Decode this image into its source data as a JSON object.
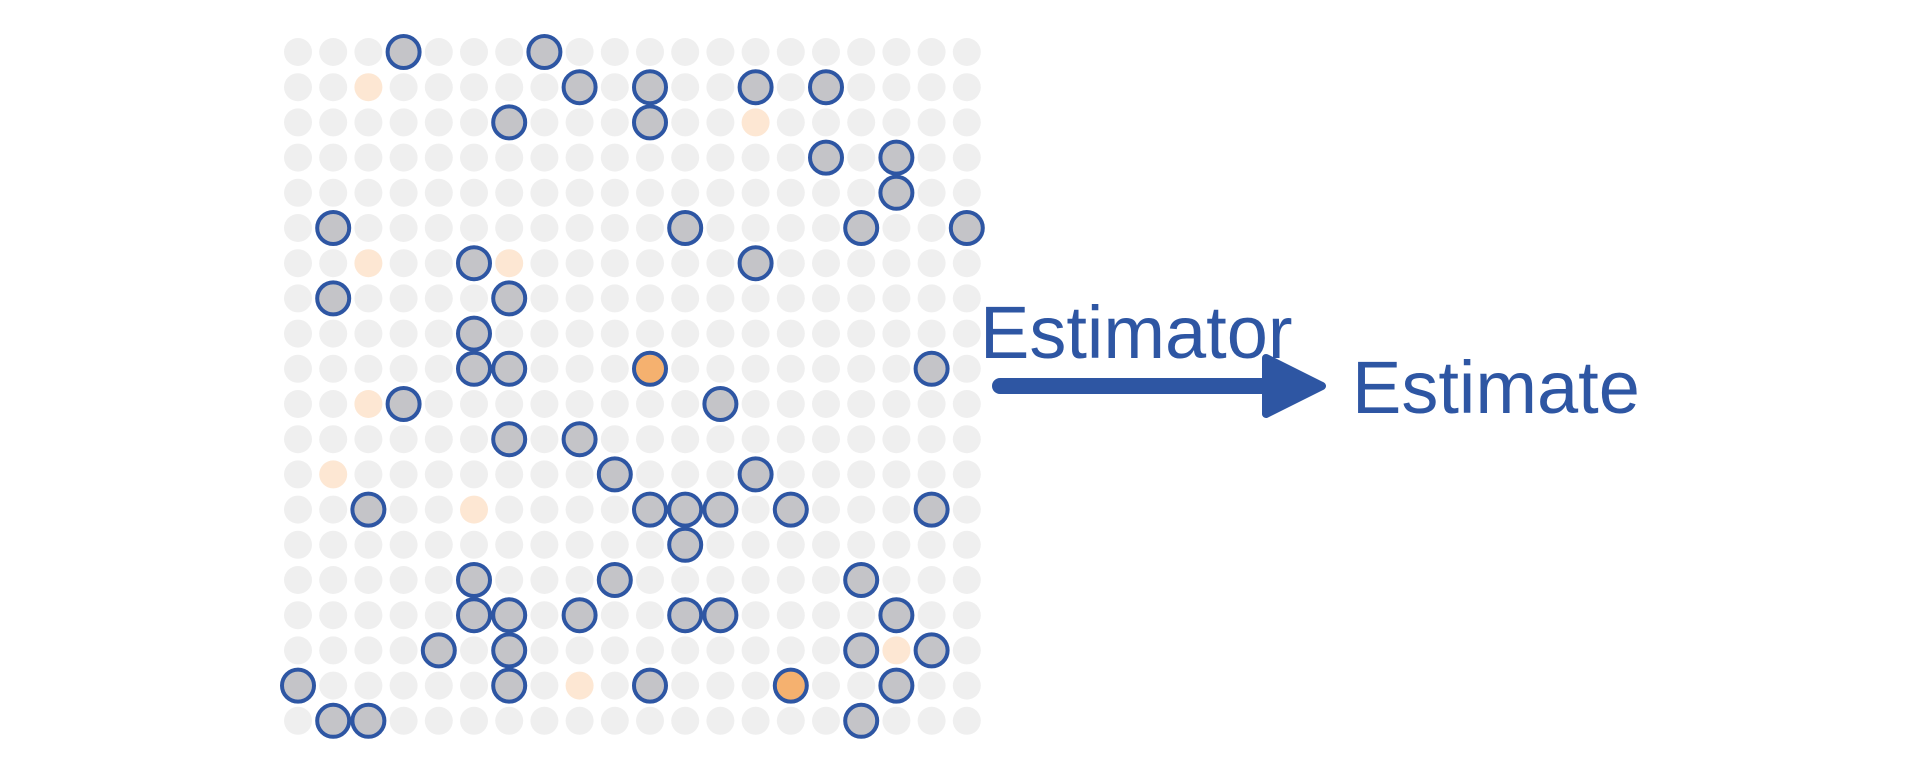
{
  "labels": {
    "estimator": "Estimator",
    "estimate": "Estimate"
  },
  "colors": {
    "background_dot": "#efefef",
    "faint_orange_dot": "#fde7d3",
    "orange_dot": "#f5b16f",
    "sampled_fill": "#c4c4c8",
    "sampled_stroke": "#2e56a3",
    "accent_blue": "#2e56a3"
  },
  "grid": {
    "cols": 20,
    "rows": 20,
    "faint_orange_cells": [
      [
        1,
        2
      ],
      [
        2,
        13
      ],
      [
        6,
        2
      ],
      [
        6,
        6
      ],
      [
        10,
        2
      ],
      [
        12,
        1
      ],
      [
        13,
        5
      ],
      [
        18,
        8
      ],
      [
        17,
        17
      ]
    ],
    "sampled_cells": [
      [
        0,
        3
      ],
      [
        0,
        7
      ],
      [
        1,
        8
      ],
      [
        1,
        10
      ],
      [
        1,
        13
      ],
      [
        1,
        15
      ],
      [
        2,
        6
      ],
      [
        2,
        10
      ],
      [
        3,
        15
      ],
      [
        3,
        17
      ],
      [
        4,
        17
      ],
      [
        5,
        1
      ],
      [
        5,
        11
      ],
      [
        5,
        16
      ],
      [
        5,
        19
      ],
      [
        6,
        5
      ],
      [
        6,
        13
      ],
      [
        7,
        1
      ],
      [
        7,
        6
      ],
      [
        8,
        5
      ],
      [
        9,
        5
      ],
      [
        9,
        6
      ],
      [
        9,
        10
      ],
      [
        9,
        18
      ],
      [
        10,
        3
      ],
      [
        10,
        12
      ],
      [
        11,
        6
      ],
      [
        11,
        8
      ],
      [
        12,
        9
      ],
      [
        12,
        13
      ],
      [
        13,
        2
      ],
      [
        13,
        10
      ],
      [
        13,
        11
      ],
      [
        13,
        12
      ],
      [
        13,
        14
      ],
      [
        13,
        18
      ],
      [
        14,
        11
      ],
      [
        15,
        5
      ],
      [
        15,
        9
      ],
      [
        15,
        16
      ],
      [
        16,
        5
      ],
      [
        16,
        6
      ],
      [
        16,
        8
      ],
      [
        16,
        11
      ],
      [
        16,
        12
      ],
      [
        16,
        17
      ],
      [
        17,
        4
      ],
      [
        17,
        6
      ],
      [
        17,
        16
      ],
      [
        17,
        18
      ],
      [
        18,
        0
      ],
      [
        18,
        6
      ],
      [
        18,
        10
      ],
      [
        18,
        14
      ],
      [
        18,
        17
      ],
      [
        19,
        1
      ],
      [
        19,
        2
      ],
      [
        19,
        16
      ]
    ],
    "highlighted_cells": [
      [
        9,
        10
      ],
      [
        18,
        14
      ]
    ]
  }
}
